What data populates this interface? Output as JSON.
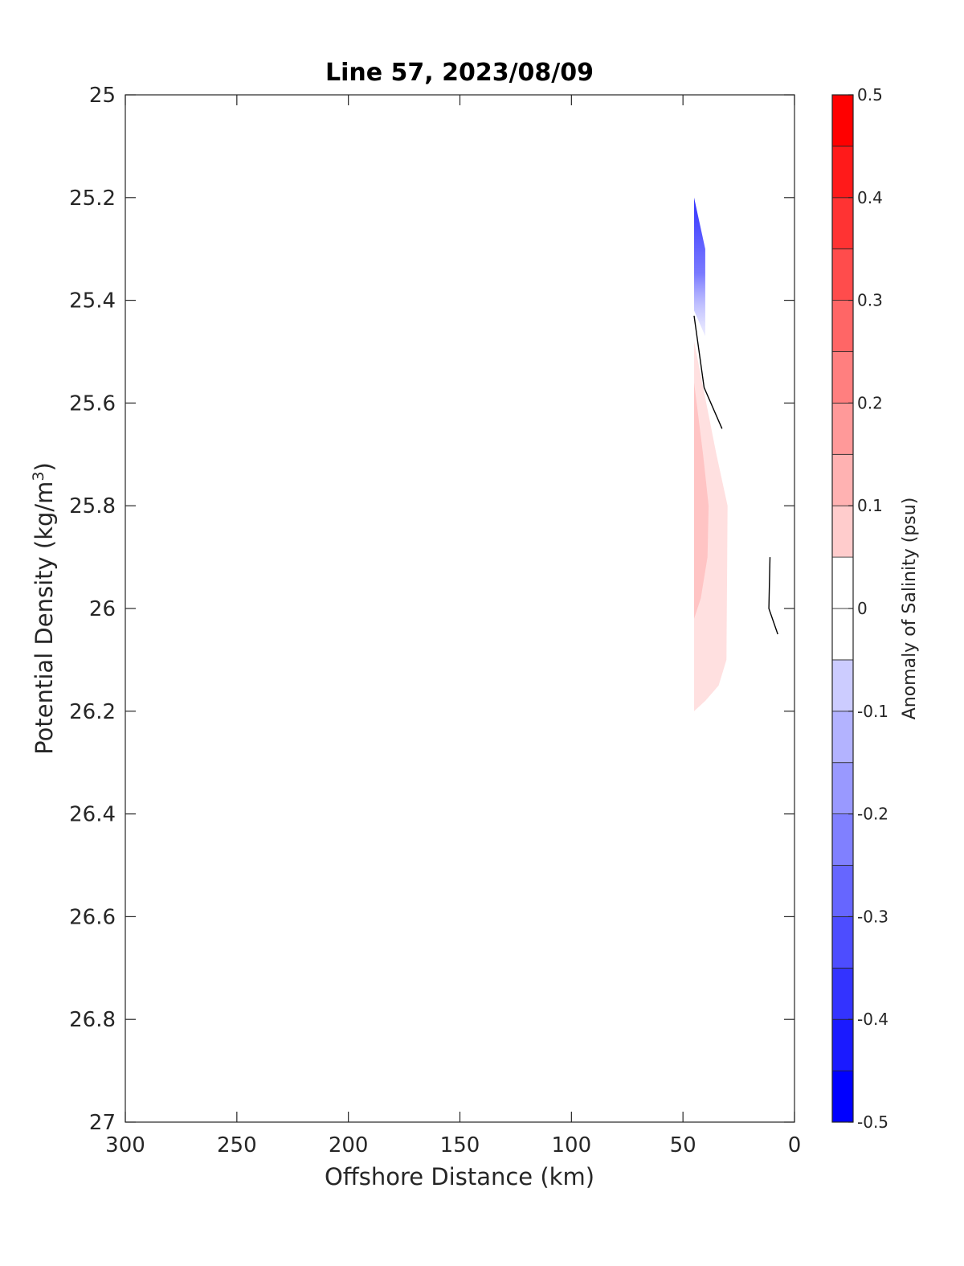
{
  "chart_data": {
    "type": "heatmap",
    "title": "Line 57, 2023/08/09",
    "xlabel": "Offshore Distance (km)",
    "ylabel": "Potential Density (kg/m",
    "ylabel_sup": "3",
    "ylabel_end": ")",
    "xlim": [
      300,
      0
    ],
    "ylim": [
      25,
      27
    ],
    "y_reversed": true,
    "x_reversed": true,
    "grid": false,
    "xticks": [
      "300",
      "250",
      "200",
      "150",
      "100",
      "50",
      "0"
    ],
    "xtick_values": [
      300,
      250,
      200,
      150,
      100,
      50,
      0
    ],
    "yticks": [
      "25",
      "25.2",
      "25.4",
      "25.6",
      "25.8",
      "26",
      "26.2",
      "26.4",
      "26.6",
      "26.8",
      "27"
    ],
    "ytick_values": [
      25,
      25.2,
      25.4,
      25.6,
      25.8,
      26,
      26.2,
      26.4,
      26.6,
      26.8,
      27
    ],
    "colorbar": {
      "label": "Anomaly of Salinity (psu)",
      "range": [
        -0.5,
        0.5
      ],
      "step": 0.05,
      "ticks": [
        "0.5",
        "0.4",
        "0.3",
        "0.2",
        "0.1",
        "0",
        "-0.1",
        "-0.2",
        "-0.3",
        "-0.4",
        "-0.5"
      ],
      "tick_values": [
        0.5,
        0.4,
        0.3,
        0.2,
        0.1,
        0,
        -0.1,
        -0.2,
        -0.3,
        -0.4,
        -0.5
      ],
      "color_min": "#0000ff",
      "color_mid": "#ffffff",
      "color_max": "#ff0000"
    },
    "regions": [
      {
        "name": "negative-anomaly-patch",
        "value": -0.2,
        "color": "#4d4dff",
        "fade": true,
        "points": [
          [
            45,
            25.2
          ],
          [
            40,
            25.3
          ],
          [
            40,
            25.47
          ],
          [
            45,
            25.42
          ]
        ]
      },
      {
        "name": "positive-anomaly-outer",
        "value": 0.075,
        "color": "#ffe0e0",
        "points": [
          [
            45,
            25.48
          ],
          [
            35,
            25.7
          ],
          [
            30,
            25.8
          ],
          [
            30.5,
            26.1
          ],
          [
            34,
            26.15
          ],
          [
            40,
            26.18
          ],
          [
            45,
            26.2
          ]
        ]
      },
      {
        "name": "positive-anomaly-inner",
        "value": 0.125,
        "color": "#ffc4c4",
        "points": [
          [
            45,
            25.56
          ],
          [
            41,
            25.7
          ],
          [
            38.5,
            25.8
          ],
          [
            39,
            25.9
          ],
          [
            42,
            25.98
          ],
          [
            45,
            26.02
          ]
        ]
      }
    ],
    "contour_lines": [
      {
        "name": "contour-line-1",
        "value": 0,
        "points": [
          [
            45,
            25.43
          ],
          [
            40.5,
            25.57
          ],
          [
            32.5,
            25.65
          ]
        ]
      },
      {
        "name": "contour-line-2",
        "value": 0,
        "points": [
          [
            11,
            25.9
          ],
          [
            11.5,
            26
          ],
          [
            7.5,
            26.05
          ]
        ]
      }
    ]
  }
}
